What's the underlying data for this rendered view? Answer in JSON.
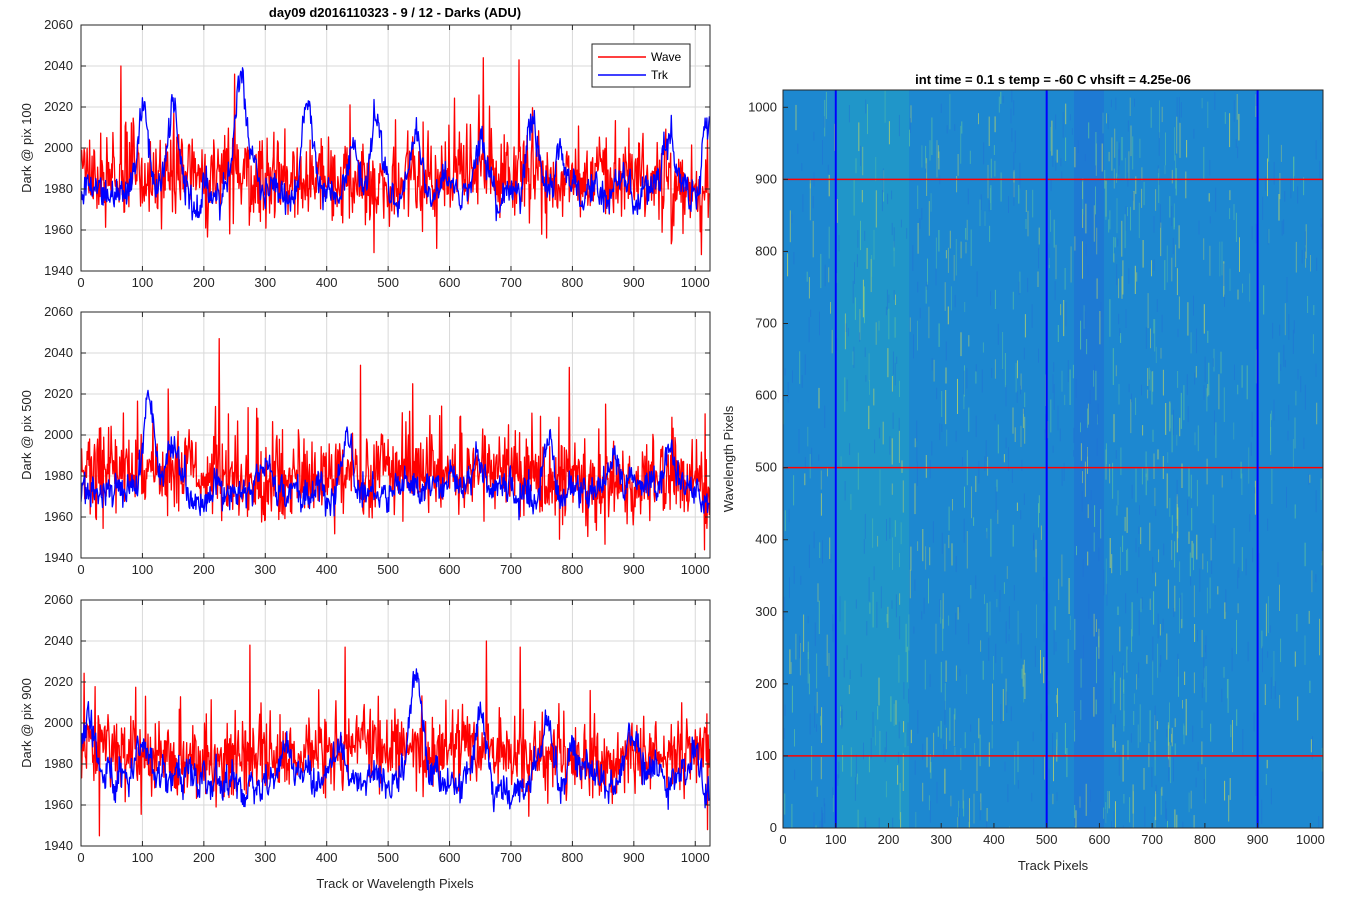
{
  "figure": {
    "title": "day09 d2016110323 - 9 / 12 - Darks (ADU)",
    "colors": {
      "wave": "#ff0000",
      "trk": "#0000ff",
      "grid": "#d9d9d9",
      "axis": "#262626"
    }
  },
  "chart_data": [
    {
      "type": "line",
      "title": "day09 d2016110323 - 9 / 12 - Darks (ADU)",
      "xlabel": "",
      "ylabel": "Dark @ pix 100",
      "xlim": [
        0,
        1024
      ],
      "ylim": [
        1940,
        2060
      ],
      "xticks": [
        0,
        100,
        200,
        300,
        400,
        500,
        600,
        700,
        800,
        900,
        1000
      ],
      "yticks": [
        1940,
        1960,
        1980,
        2000,
        2020,
        2040,
        2060
      ],
      "grid": true,
      "legend": {
        "position": "top-right",
        "entries": [
          "Wave",
          "Trk"
        ]
      },
      "series": [
        {
          "name": "Wave",
          "color": "#ff0000",
          "mean": 1985,
          "spread": 18,
          "peaks": [
            [
              65,
              2040
            ],
            [
              250,
              2036
            ],
            [
              655,
              2044
            ],
            [
              713,
              2043
            ],
            [
              1010,
              1948
            ]
          ]
        },
        {
          "name": "Trk",
          "color": "#0000ff",
          "mean": 1978,
          "spread": 6,
          "bumps": [
            [
              100,
              2016
            ],
            [
              150,
              2020
            ],
            [
              260,
              2036
            ],
            [
              370,
              2020
            ],
            [
              445,
              2004
            ],
            [
              480,
              2014
            ],
            [
              545,
              2014
            ],
            [
              650,
              2004
            ],
            [
              735,
              2012
            ],
            [
              780,
              2001
            ],
            [
              960,
              2007
            ],
            [
              1020,
              2012
            ]
          ]
        }
      ]
    },
    {
      "type": "line",
      "title": "",
      "xlabel": "",
      "ylabel": "Dark @ pix 500",
      "xlim": [
        0,
        1024
      ],
      "ylim": [
        1940,
        2060
      ],
      "xticks": [
        0,
        100,
        200,
        300,
        400,
        500,
        600,
        700,
        800,
        900,
        1000
      ],
      "yticks": [
        1940,
        1960,
        1980,
        2000,
        2020,
        2040,
        2060
      ],
      "grid": true,
      "series": [
        {
          "name": "Wave",
          "color": "#ff0000",
          "mean": 1980,
          "spread": 18,
          "peaks": [
            [
              225,
              2047
            ],
            [
              455,
              2034
            ],
            [
              540,
              2025
            ],
            [
              795,
              2033
            ],
            [
              1015,
              1944
            ]
          ]
        },
        {
          "name": "Trk",
          "color": "#0000ff",
          "mean": 1972,
          "spread": 6,
          "bumps": [
            [
              110,
              2013
            ],
            [
              150,
              1996
            ],
            [
              300,
              1988
            ],
            [
              430,
              1994
            ],
            [
              600,
              1982
            ],
            [
              640,
              1988
            ],
            [
              760,
              1998
            ],
            [
              870,
              1990
            ],
            [
              960,
              1995
            ]
          ]
        }
      ]
    },
    {
      "type": "line",
      "title": "",
      "xlabel": "Track or Wavelength Pixels",
      "ylabel": "Dark @ pix 900",
      "xlim": [
        0,
        1024
      ],
      "ylim": [
        1940,
        2060
      ],
      "xticks": [
        0,
        100,
        200,
        300,
        400,
        500,
        600,
        700,
        800,
        900,
        1000
      ],
      "yticks": [
        1940,
        1960,
        1980,
        2000,
        2020,
        2040,
        2060
      ],
      "grid": true,
      "series": [
        {
          "name": "Wave",
          "color": "#ff0000",
          "mean": 1985,
          "spread": 16,
          "peaks": [
            [
              30,
              1945
            ],
            [
              275,
              2038
            ],
            [
              430,
              2037
            ],
            [
              660,
              2040
            ],
            [
              715,
              2037
            ],
            [
              1020,
              1948
            ]
          ]
        },
        {
          "name": "Trk",
          "color": "#0000ff",
          "mean": 1972,
          "spread": 6,
          "bumps": [
            [
              10,
              2005
            ],
            [
              100,
              1988
            ],
            [
              335,
              1986
            ],
            [
              420,
              1986
            ],
            [
              545,
              2027
            ],
            [
              650,
              2002
            ],
            [
              760,
              2002
            ],
            [
              800,
              1992
            ],
            [
              900,
              1994
            ],
            [
              1000,
              1989
            ]
          ]
        }
      ]
    },
    {
      "type": "heatmap",
      "title": "int time = 0.1 s   temp = -60 C   vhsift = 4.25e-06",
      "xlabel": "Track Pixels",
      "ylabel": "Wavelength Pixels",
      "xlim": [
        0,
        1024
      ],
      "ylim": [
        0,
        1024
      ],
      "xticks": [
        0,
        100,
        200,
        300,
        400,
        500,
        600,
        700,
        800,
        900,
        1000
      ],
      "yticks": [
        0,
        100,
        200,
        300,
        400,
        500,
        600,
        700,
        800,
        900,
        1000
      ],
      "colormap": [
        "#1f6fd6",
        "#1e88d0",
        "#22a3c2",
        "#5cc0a0",
        "#b9d36a"
      ],
      "vertical_markers": {
        "color": "#0000ff",
        "x": [
          100,
          500,
          900
        ]
      },
      "horizontal_markers": {
        "color": "#ff0000",
        "y": [
          100,
          500,
          900
        ]
      }
    }
  ]
}
